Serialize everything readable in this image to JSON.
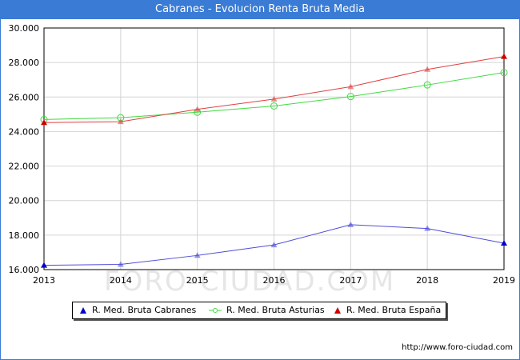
{
  "title": "Cabranes - Evolucion Renta Bruta Media",
  "source": "http://www.foro-ciudad.com",
  "watermark": "FORO-CIUDAD.COM",
  "chart_data": {
    "type": "line",
    "title": "Cabranes - Evolucion Renta Bruta Media",
    "x": [
      "2013",
      "2014",
      "2015",
      "2016",
      "2017",
      "2018",
      "2019"
    ],
    "ylim": [
      16000,
      30000
    ],
    "yticks": [
      16000,
      18000,
      20000,
      22000,
      24000,
      26000,
      28000,
      30000
    ],
    "ytick_labels": [
      "16.000",
      "18.000",
      "20.000",
      "22.000",
      "24.000",
      "26.000",
      "28.000",
      "30.000"
    ],
    "grid": true,
    "legend_position": "bottom",
    "series": [
      {
        "name": "R. Med. Bruta Cabranes",
        "color": "#4d4dd9",
        "marker": "triangle",
        "values": [
          16250,
          16300,
          16820,
          17430,
          18600,
          18380,
          17530
        ]
      },
      {
        "name": "R. Med. Bruta Asturias",
        "color": "#3fd93f",
        "marker": "circle",
        "values": [
          24700,
          24800,
          25120,
          25480,
          26030,
          26700,
          27420
        ]
      },
      {
        "name": "R. Med. Bruta España",
        "color": "#e04040",
        "marker": "triangle",
        "values": [
          24520,
          24570,
          25290,
          25880,
          26600,
          27600,
          28350
        ]
      }
    ]
  }
}
